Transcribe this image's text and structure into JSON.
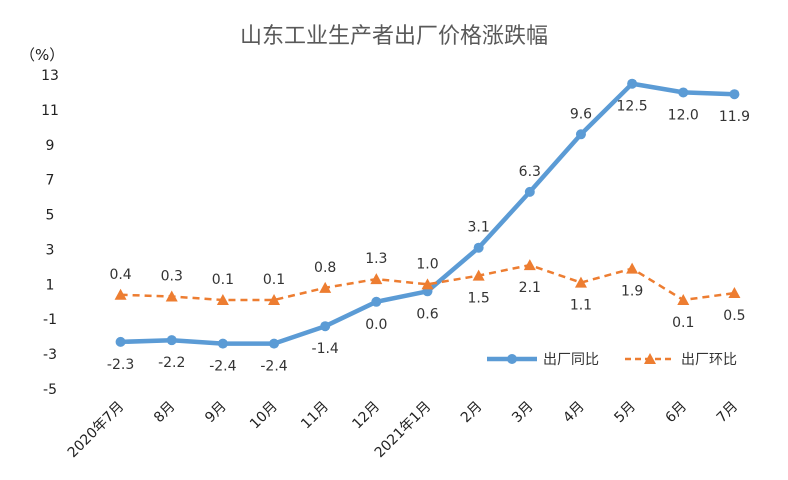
{
  "chart_data": {
    "type": "line",
    "title": "山东工业生产者出厂价格涨跌幅",
    "unit_label": "（%）",
    "categories": [
      "2020年7月",
      "8月",
      "9月",
      "10月",
      "11月",
      "12月",
      "2021年1月",
      "2月",
      "3月",
      "4月",
      "5月",
      "6月",
      "7月"
    ],
    "ylim": [
      -5,
      13
    ],
    "yticks": [
      -5,
      -3,
      -1,
      1,
      3,
      5,
      7,
      9,
      11,
      13
    ],
    "grid": false,
    "legend_position": "right",
    "series": [
      {
        "name": "出厂同比",
        "color": "#5B9BD5",
        "style": "solid",
        "marker": "circle",
        "values": [
          -2.3,
          -2.2,
          -2.4,
          -2.4,
          -1.4,
          0.0,
          0.6,
          3.1,
          6.3,
          9.6,
          12.5,
          12.0,
          11.9
        ]
      },
      {
        "name": "出厂环比",
        "color": "#ED7D31",
        "style": "dashed",
        "marker": "triangle",
        "values": [
          0.4,
          0.3,
          0.1,
          0.1,
          0.8,
          1.3,
          1.0,
          1.5,
          2.1,
          1.1,
          1.9,
          0.1,
          0.5
        ]
      }
    ]
  }
}
